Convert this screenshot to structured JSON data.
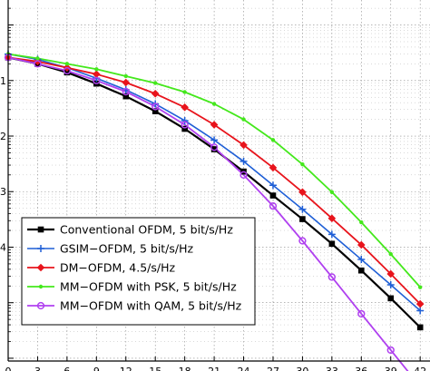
{
  "chart_data": {
    "type": "line",
    "title": "",
    "xlabel": "",
    "ylabel": "",
    "x": [
      0,
      3,
      6,
      9,
      12,
      15,
      18,
      21,
      24,
      27,
      30,
      33,
      36,
      39,
      42
    ],
    "x_tick_labels": [
      "0",
      "3",
      "6",
      "9",
      "12",
      "15",
      "18",
      "21",
      "24",
      "27",
      "30",
      "33",
      "36",
      "39",
      "42"
    ],
    "y_scale": "log",
    "y_tick_labels": [
      "1",
      "2",
      "3",
      "4"
    ],
    "grid": true,
    "legend_position": "lower-left",
    "series": [
      {
        "name": "Conventional OFDM, 5 bit/s/Hz",
        "color": "#000000",
        "marker": "square",
        "line_width": 2.2,
        "values": [
          0.26,
          0.2,
          0.14,
          0.088,
          0.052,
          0.028,
          0.0135,
          0.0058,
          0.0023,
          0.00085,
          0.00032,
          0.000115,
          3.8e-05,
          1.2e-05,
          3.6e-06
        ]
      },
      {
        "name": "GSIM−OFDM, 5 bit/s/Hz",
        "color": "#1f5fd6",
        "marker": "plus",
        "line_width": 1.6,
        "values": [
          0.3,
          0.24,
          0.17,
          0.11,
          0.068,
          0.038,
          0.019,
          0.0085,
          0.0035,
          0.0013,
          0.00048,
          0.00017,
          6e-05,
          2.1e-05,
          7.2e-06
        ]
      },
      {
        "name": "DM−OFDM, 4.5/s/Hz",
        "color": "#e8141c",
        "marker": "diamond",
        "line_width": 1.8,
        "values": [
          0.26,
          0.22,
          0.17,
          0.13,
          0.092,
          0.058,
          0.033,
          0.016,
          0.0069,
          0.0027,
          0.00098,
          0.00033,
          0.00011,
          3.3e-05,
          9.5e-06
        ]
      },
      {
        "name": "MM−OFDM with PSK, 5 bit/s/Hz",
        "color": "#44e81c",
        "marker": "point",
        "line_width": 1.8,
        "values": [
          0.3,
          0.25,
          0.2,
          0.16,
          0.12,
          0.09,
          0.062,
          0.038,
          0.02,
          0.0085,
          0.0031,
          0.00098,
          0.00028,
          7.5e-05,
          1.9e-05
        ]
      },
      {
        "name": "MM−OFDM with QAM, 5 bit/s/Hz",
        "color": "#b040f0",
        "marker": "circle",
        "line_width": 1.8,
        "values": [
          0.26,
          0.2,
          0.15,
          0.1,
          0.063,
          0.034,
          0.016,
          0.0063,
          0.002,
          0.00055,
          0.00013,
          2.9e-05,
          6.3e-06,
          1.4e-06,
          3.1e-07
        ]
      }
    ]
  }
}
